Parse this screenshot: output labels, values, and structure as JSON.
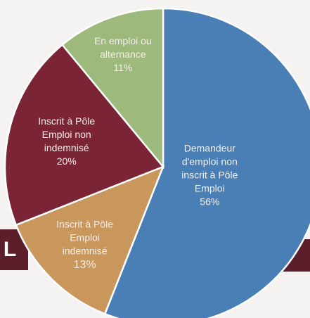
{
  "background_text": "L",
  "chart_data": {
    "type": "pie",
    "categories": [
      [
        "Demandeur",
        "d'emploi non",
        "inscrit à Pôle",
        "Emploi"
      ],
      [
        "Inscrit à Pôle",
        "Emploi",
        "indemnisé"
      ],
      [
        "Inscrit à Pôle",
        "Emploi non",
        "indemnisé"
      ],
      [
        "En emploi ou",
        "alternance"
      ]
    ],
    "values": [
      56,
      13,
      20,
      11
    ],
    "value_labels": [
      "56%",
      "13%",
      "20%",
      "11%"
    ],
    "colors": [
      "#4a7fb6",
      "#c9965c",
      "#7b2435",
      "#9db97b"
    ]
  }
}
